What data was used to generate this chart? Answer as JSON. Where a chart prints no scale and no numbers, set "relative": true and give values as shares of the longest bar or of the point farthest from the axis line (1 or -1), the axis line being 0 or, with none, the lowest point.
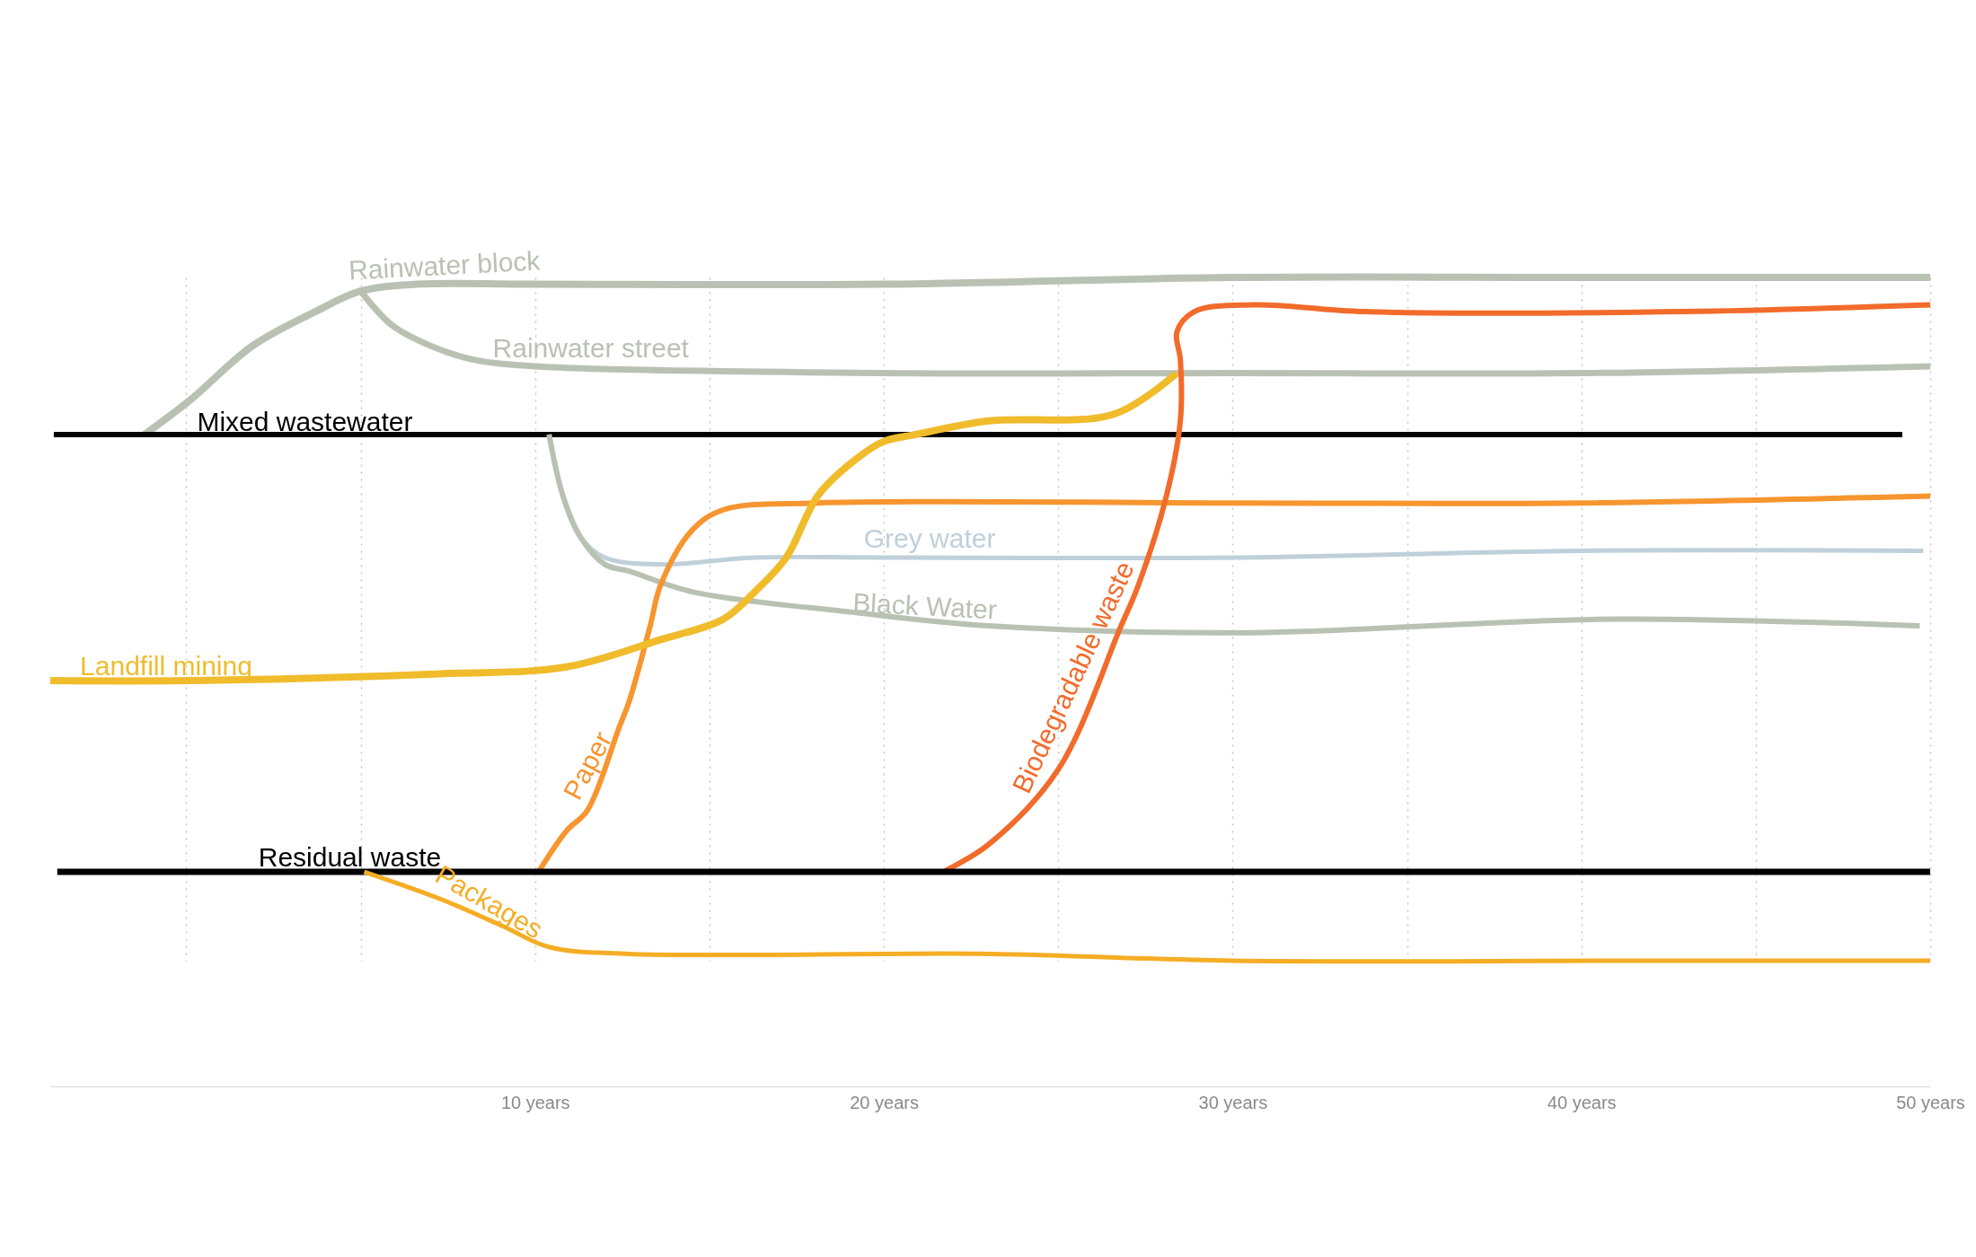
{
  "chart_data": {
    "type": "line",
    "relative": true,
    "xlim": [
      -3.9,
      50
    ],
    "xticks": [
      {
        "value": 0,
        "label": null
      },
      {
        "value": 5,
        "label": null
      },
      {
        "value": 10,
        "label": "10 years"
      },
      {
        "value": 15,
        "label": null
      },
      {
        "value": 20,
        "label": "20 years"
      },
      {
        "value": 25,
        "label": null
      },
      {
        "value": 30,
        "label": "30 years"
      },
      {
        "value": 35,
        "label": null
      },
      {
        "value": 40,
        "label": "40 years"
      },
      {
        "value": 45,
        "label": null
      },
      {
        "value": 50,
        "label": "50 years"
      }
    ],
    "grid": "x",
    "series": [
      {
        "name": "Rainwater block",
        "color": "#b9c1b3",
        "x": [
          -1.2,
          0.1,
          1.9,
          3.7,
          5.0,
          6.6,
          10,
          20,
          30,
          40,
          50
        ],
        "values": [
          0.77,
          0.82,
          0.9,
          0.95,
          0.98,
          0.99,
          0.99,
          0.99,
          1.0,
          1.0,
          1.0
        ]
      },
      {
        "name": "Rainwater street",
        "color": "#b9c1b3",
        "x": [
          5.0,
          5.9,
          7.0,
          8.2,
          10,
          20,
          30,
          40,
          50
        ],
        "values": [
          0.98,
          0.93,
          0.9,
          0.88,
          0.87,
          0.86,
          0.86,
          0.86,
          0.87
        ]
      },
      {
        "name": "Mixed wastewater",
        "color": "#000000",
        "x": [
          -3.8,
          0,
          10,
          20,
          30,
          40,
          49.2
        ],
        "values": [
          0.77,
          0.77,
          0.77,
          0.77,
          0.77,
          0.77,
          0.77
        ]
      },
      {
        "name": "Grey water",
        "color": "#bfd0da",
        "x": [
          10.4,
          10.8,
          11.3,
          12.0,
          13.6,
          16.3,
          20,
          30,
          40,
          49.8
        ],
        "values": [
          0.77,
          0.68,
          0.62,
          0.59,
          0.58,
          0.59,
          0.59,
          0.59,
          0.6,
          0.6
        ]
      },
      {
        "name": "Black Water",
        "color": "#b9c1b3",
        "x": [
          10.4,
          10.8,
          11.3,
          12.0,
          12.7,
          14.5,
          19.1,
          23.0,
          30.2,
          41.0,
          49.7
        ],
        "values": [
          0.77,
          0.68,
          0.62,
          0.58,
          0.57,
          0.54,
          0.51,
          0.49,
          0.48,
          0.5,
          0.49
        ]
      },
      {
        "name": "Paper",
        "color": "#f7952f",
        "x": [
          10.1,
          10.9,
          11.5,
          12.4,
          12.7,
          13.3,
          13.6,
          14.5,
          15.4,
          18.1,
          30,
          40,
          50
        ],
        "values": [
          0.13,
          0.19,
          0.22,
          0.34,
          0.38,
          0.49,
          0.55,
          0.63,
          0.66,
          0.67,
          0.67,
          0.67,
          0.68
        ]
      },
      {
        "name": "Landfill mining",
        "color": "#f0bc2c",
        "x": [
          -3.9,
          0,
          7.3,
          10.9,
          13.6,
          15.4,
          16.3,
          17.2,
          18.1,
          19.1,
          20.0,
          20.9,
          23.0,
          26.6,
          28.4
        ],
        "values": [
          0.41,
          0.41,
          0.42,
          0.43,
          0.47,
          0.5,
          0.54,
          0.59,
          0.68,
          0.73,
          0.76,
          0.77,
          0.79,
          0.8,
          0.86
        ]
      },
      {
        "name": "Biodegradable waste",
        "color": "#f26b2b",
        "x": [
          21.7,
          23.0,
          25.0,
          26.8,
          27.3,
          28.1,
          28.5,
          28.5,
          28.4,
          28.9,
          30.6,
          33.8,
          42.9,
          50
        ],
        "values": [
          0.13,
          0.17,
          0.28,
          0.49,
          0.55,
          0.68,
          0.79,
          0.88,
          0.92,
          0.95,
          0.96,
          0.95,
          0.95,
          0.96
        ]
      },
      {
        "name": "Residual waste",
        "color": "#000000",
        "x": [
          -3.7,
          0,
          10,
          20,
          30,
          40,
          50
        ],
        "values": [
          0.13,
          0.13,
          0.13,
          0.13,
          0.13,
          0.13,
          0.13
        ]
      },
      {
        "name": "Packages",
        "color": "#f5ad25",
        "x": [
          5.1,
          7.3,
          9.1,
          10.4,
          12.7,
          23.0,
          30,
          41,
          50
        ],
        "values": [
          0.13,
          0.09,
          0.05,
          0.02,
          0.01,
          0.01,
          0.0,
          0.0,
          0.0
        ]
      }
    ]
  }
}
